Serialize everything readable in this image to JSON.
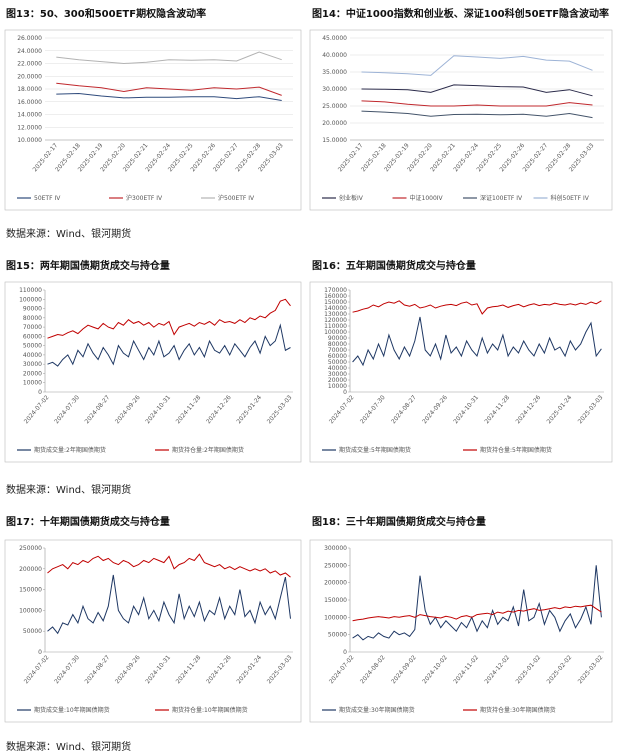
{
  "chart_data": [
    {
      "type": "line",
      "title": "图13：50、300和500ETF期权隐含波动率",
      "grid": true,
      "categories": [
        "2025-02-17",
        "2025-02-18",
        "2025-02-19",
        "2025-02-20",
        "2025-02-21",
        "2025-02-24",
        "2025-02-25",
        "2025-02-26",
        "2025-02-27",
        "2025-02-28",
        "2025-03-03"
      ],
      "ylim": [
        10,
        26
      ],
      "yticks": [
        {
          "value": 10,
          "label": "10.0000"
        },
        {
          "value": 12,
          "label": "12.0000"
        },
        {
          "value": 14,
          "label": "14.0000"
        },
        {
          "value": 16,
          "label": "16.0000"
        },
        {
          "value": 18,
          "label": "18.0000"
        },
        {
          "value": 20,
          "label": "20.0000"
        },
        {
          "value": 22,
          "label": "22.0000"
        },
        {
          "value": 24,
          "label": "24.0000"
        },
        {
          "value": 26,
          "label": "26.0000"
        }
      ],
      "series": [
        {
          "name": "50ETF IV",
          "color": "#2f4b7c",
          "values": [
            17.2,
            17.3,
            16.9,
            16.6,
            16.7,
            16.7,
            16.8,
            16.8,
            16.5,
            16.8,
            16.2
          ]
        },
        {
          "name": "沪300ETF IV",
          "color": "#c0282d",
          "values": [
            18.9,
            18.5,
            18.2,
            17.6,
            18.2,
            18.0,
            17.8,
            18.2,
            18.0,
            18.3,
            17.0
          ]
        },
        {
          "name": "沪500ETF IV",
          "color": "#b3b3b3",
          "values": [
            23.0,
            22.6,
            22.3,
            22.0,
            22.2,
            22.6,
            22.5,
            22.6,
            22.4,
            23.8,
            22.6
          ]
        }
      ]
    },
    {
      "type": "line",
      "title": "图14：中证1000指数和创业板、深证100科创50ETF隐含波动率",
      "grid": true,
      "categories": [
        "2025-02-17",
        "2025-02-18",
        "2025-02-19",
        "2025-02-20",
        "2025-02-21",
        "2025-02-24",
        "2025-02-25",
        "2025-02-26",
        "2025-02-27",
        "2025-02-28",
        "2025-03-03"
      ],
      "ylim": [
        15,
        45
      ],
      "yticks": [
        {
          "value": 15,
          "label": "15.0000"
        },
        {
          "value": 20,
          "label": "20.0000"
        },
        {
          "value": 25,
          "label": "25.0000"
        },
        {
          "value": 30,
          "label": "30.0000"
        },
        {
          "value": 35,
          "label": "35.0000"
        },
        {
          "value": 40,
          "label": "40.0000"
        },
        {
          "value": 45,
          "label": "45.0000"
        }
      ],
      "series": [
        {
          "name": "创业板IV",
          "color": "#2b2b4a",
          "values": [
            30.0,
            29.9,
            29.8,
            29.0,
            31.2,
            31.0,
            30.7,
            30.6,
            29.0,
            29.8,
            28.0
          ]
        },
        {
          "name": "中证1000IV",
          "color": "#c0282d",
          "values": [
            26.5,
            26.2,
            25.5,
            25.0,
            25.0,
            25.3,
            25.0,
            25.0,
            25.0,
            26.0,
            25.3
          ]
        },
        {
          "name": "深证100ETF IV",
          "color": "#44546a",
          "values": [
            23.5,
            23.2,
            22.8,
            22.0,
            22.5,
            22.6,
            22.4,
            22.6,
            22.0,
            22.8,
            21.6
          ]
        },
        {
          "name": "科创50ETF IV",
          "color": "#9db3d6",
          "values": [
            35.0,
            34.8,
            34.5,
            34.0,
            39.8,
            39.4,
            39.0,
            39.6,
            38.5,
            38.2,
            35.5
          ]
        }
      ]
    },
    {
      "type": "line",
      "title": "图15：两年期国债期货成交与持仓量",
      "grid": false,
      "categories": [
        "2024-07-02",
        null,
        null,
        null,
        null,
        null,
        "2024-07-30",
        null,
        null,
        null,
        null,
        null,
        "2024-08-27",
        null,
        null,
        null,
        null,
        null,
        "2024-09-26",
        null,
        null,
        null,
        null,
        null,
        "2024-10-31",
        null,
        null,
        null,
        null,
        null,
        "2024-11-28",
        null,
        null,
        null,
        null,
        null,
        "2024-12-26",
        null,
        null,
        null,
        null,
        null,
        "2025-01-24",
        null,
        null,
        null,
        null,
        null,
        "2025-03-03"
      ],
      "ylim": [
        0,
        110000
      ],
      "yticks": [
        0,
        10000,
        20000,
        30000,
        40000,
        50000,
        60000,
        70000,
        80000,
        90000,
        100000,
        110000
      ],
      "series": [
        {
          "name": "期货成交量:2年期国债期货",
          "color": "#1f3864",
          "values": [
            30000,
            32000,
            28000,
            35000,
            40000,
            30000,
            45000,
            38000,
            52000,
            42000,
            35000,
            48000,
            40000,
            30000,
            50000,
            42000,
            38000,
            55000,
            45000,
            35000,
            48000,
            40000,
            55000,
            38000,
            42000,
            50000,
            35000,
            45000,
            52000,
            40000,
            48000,
            38000,
            55000,
            45000,
            42000,
            50000,
            40000,
            52000,
            45000,
            38000,
            48000,
            55000,
            42000,
            60000,
            50000,
            55000,
            72000,
            45000,
            48000
          ]
        },
        {
          "name": "期货持仓量:2年期国债期货",
          "color": "#c00000",
          "values": [
            58000,
            60000,
            62000,
            61000,
            64000,
            66000,
            63000,
            68000,
            72000,
            70000,
            68000,
            74000,
            70000,
            68000,
            75000,
            72000,
            78000,
            74000,
            76000,
            72000,
            75000,
            70000,
            74000,
            72000,
            76000,
            62000,
            70000,
            72000,
            74000,
            71000,
            75000,
            73000,
            76000,
            72000,
            78000,
            75000,
            76000,
            74000,
            78000,
            75000,
            80000,
            78000,
            82000,
            80000,
            85000,
            88000,
            98000,
            100000,
            93000
          ]
        }
      ]
    },
    {
      "type": "line",
      "title": "图16：五年期国债期货成交与持仓量",
      "grid": false,
      "categories": [
        "2024-07-02",
        null,
        null,
        null,
        null,
        null,
        "2024-07-30",
        null,
        null,
        null,
        null,
        null,
        "2024-08-27",
        null,
        null,
        null,
        null,
        null,
        "2024-09-26",
        null,
        null,
        null,
        null,
        null,
        "2024-10-31",
        null,
        null,
        null,
        null,
        null,
        "2024-11-28",
        null,
        null,
        null,
        null,
        null,
        "2024-12-26",
        null,
        null,
        null,
        null,
        null,
        "2025-01-24",
        null,
        null,
        null,
        null,
        null,
        "2025-03-03"
      ],
      "ylim": [
        0,
        170000
      ],
      "yticks": [
        0,
        10000,
        20000,
        30000,
        40000,
        50000,
        60000,
        70000,
        80000,
        90000,
        100000,
        110000,
        120000,
        130000,
        140000,
        150000,
        160000,
        170000
      ],
      "series": [
        {
          "name": "期货成交量:5年期国债期货",
          "color": "#1f3864",
          "values": [
            50000,
            60000,
            45000,
            70000,
            55000,
            80000,
            60000,
            95000,
            70000,
            55000,
            75000,
            60000,
            85000,
            125000,
            70000,
            60000,
            80000,
            55000,
            95000,
            65000,
            75000,
            60000,
            85000,
            70000,
            60000,
            90000,
            65000,
            80000,
            70000,
            95000,
            60000,
            75000,
            65000,
            85000,
            70000,
            60000,
            80000,
            65000,
            90000,
            70000,
            75000,
            60000,
            85000,
            70000,
            80000,
            100000,
            115000,
            60000,
            72000
          ]
        },
        {
          "name": "期货持仓量:5年期国债期货",
          "color": "#c00000",
          "values": [
            133000,
            135000,
            138000,
            140000,
            145000,
            142000,
            147000,
            150000,
            148000,
            152000,
            145000,
            143000,
            146000,
            140000,
            142000,
            145000,
            140000,
            143000,
            145000,
            146000,
            144000,
            148000,
            150000,
            145000,
            147000,
            130000,
            140000,
            142000,
            143000,
            145000,
            141000,
            144000,
            146000,
            142000,
            145000,
            147000,
            144000,
            146000,
            145000,
            148000,
            146000,
            145000,
            147000,
            145000,
            148000,
            146000,
            150000,
            147000,
            152000
          ]
        }
      ]
    },
    {
      "type": "line",
      "title": "图17：十年期国债期货成交与持仓量",
      "grid": false,
      "categories": [
        "2024-07-02",
        null,
        null,
        null,
        null,
        null,
        "2024-07-30",
        null,
        null,
        null,
        null,
        null,
        "2024-08-27",
        null,
        null,
        null,
        null,
        null,
        "2024-09-26",
        null,
        null,
        null,
        null,
        null,
        "2024-10-31",
        null,
        null,
        null,
        null,
        null,
        "2024-11-28",
        null,
        null,
        null,
        null,
        null,
        "2024-12-26",
        null,
        null,
        null,
        null,
        null,
        "2025-01-24",
        null,
        null,
        null,
        null,
        null,
        "2025-03-03"
      ],
      "ylim": [
        0,
        250000
      ],
      "yticks": [
        0,
        50000,
        100000,
        150000,
        200000,
        250000
      ],
      "series": [
        {
          "name": "期货成交量:10年期国债期货",
          "color": "#1f3864",
          "values": [
            50000,
            60000,
            45000,
            70000,
            65000,
            90000,
            70000,
            110000,
            80000,
            70000,
            95000,
            75000,
            110000,
            185000,
            100000,
            80000,
            70000,
            110000,
            90000,
            130000,
            80000,
            100000,
            75000,
            120000,
            90000,
            70000,
            140000,
            80000,
            110000,
            85000,
            120000,
            75000,
            100000,
            90000,
            130000,
            80000,
            110000,
            90000,
            150000,
            85000,
            100000,
            70000,
            120000,
            90000,
            110000,
            80000,
            130000,
            180000,
            80000
          ]
        },
        {
          "name": "期货持仓量:10年期国债期货",
          "color": "#c00000",
          "values": [
            190000,
            200000,
            205000,
            210000,
            200000,
            215000,
            210000,
            220000,
            215000,
            225000,
            230000,
            220000,
            225000,
            215000,
            210000,
            220000,
            215000,
            205000,
            210000,
            220000,
            215000,
            225000,
            220000,
            215000,
            230000,
            200000,
            210000,
            215000,
            225000,
            220000,
            235000,
            215000,
            210000,
            205000,
            210000,
            200000,
            205000,
            198000,
            205000,
            200000,
            195000,
            200000,
            195000,
            200000,
            190000,
            195000,
            185000,
            190000,
            180000
          ]
        }
      ]
    },
    {
      "type": "line",
      "title": "图18：三十年期国债期货成交与持仓量",
      "grid": false,
      "categories": [
        "2024-07-02",
        null,
        null,
        null,
        null,
        null,
        "2024-08-02",
        null,
        null,
        null,
        null,
        null,
        "2024-09-02",
        null,
        null,
        null,
        null,
        null,
        "2024-10-02",
        null,
        null,
        null,
        null,
        null,
        "2024-11-02",
        null,
        null,
        null,
        null,
        null,
        "2024-12-02",
        null,
        null,
        null,
        null,
        null,
        "2025-01-02",
        null,
        null,
        null,
        null,
        null,
        "2025-02-02",
        null,
        null,
        null,
        null,
        null,
        "2025-03-02"
      ],
      "ylim": [
        0,
        300000
      ],
      "yticks": [
        0,
        50000,
        100000,
        150000,
        200000,
        250000,
        300000
      ],
      "series": [
        {
          "name": "期货成交量:30年期国债期货",
          "color": "#1f3864",
          "values": [
            40000,
            50000,
            35000,
            45000,
            40000,
            55000,
            45000,
            40000,
            60000,
            50000,
            55000,
            45000,
            65000,
            220000,
            120000,
            80000,
            100000,
            70000,
            90000,
            75000,
            60000,
            85000,
            70000,
            100000,
            60000,
            90000,
            70000,
            120000,
            80000,
            100000,
            90000,
            130000,
            75000,
            180000,
            90000,
            100000,
            140000,
            80000,
            120000,
            100000,
            60000,
            90000,
            110000,
            70000,
            95000,
            130000,
            80000,
            250000,
            100000
          ]
        },
        {
          "name": "期货持仓量:30年期国债期货",
          "color": "#c00000",
          "values": [
            90000,
            93000,
            95000,
            98000,
            100000,
            102000,
            100000,
            98000,
            102000,
            100000,
            103000,
            105000,
            100000,
            108000,
            105000,
            102000,
            100000,
            98000,
            103000,
            100000,
            95000,
            102000,
            105000,
            100000,
            108000,
            110000,
            112000,
            108000,
            115000,
            112000,
            118000,
            115000,
            120000,
            118000,
            122000,
            125000,
            120000,
            122000,
            125000,
            128000,
            125000,
            130000,
            128000,
            132000,
            130000,
            133000,
            135000,
            125000,
            115000
          ]
        }
      ]
    }
  ],
  "sources": [
    "数据来源：Wind、银河期货",
    "数据来源：Wind、银河期货",
    "数据来源：Wind、银河期货"
  ]
}
